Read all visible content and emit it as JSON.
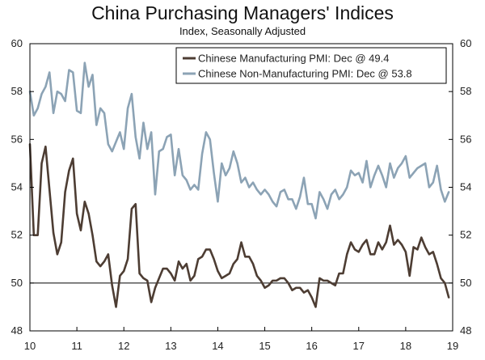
{
  "title": "China Purchasing Managers' Indices",
  "subtitle": "Index, Seasonally Adjusted",
  "chart_data": {
    "type": "line",
    "ylim": [
      48,
      60
    ],
    "yticks": [
      "48",
      "50",
      "52",
      "54",
      "56",
      "58",
      "60"
    ],
    "xlim": [
      2010,
      2019
    ],
    "xticks": [
      "10",
      "11",
      "12",
      "13",
      "14",
      "15",
      "16",
      "17",
      "18",
      "19"
    ],
    "reference_line": 50,
    "legend_position": "top-right",
    "colors": {
      "manufacturing": "#4d3d33",
      "non_manufacturing": "#8ca3b5"
    },
    "series": [
      {
        "name": "Chinese Manufacturing PMI: Dec @ 49.4",
        "key": "manufacturing",
        "start": [
          2010,
          1
        ],
        "values": [
          55.8,
          52.0,
          52.0,
          55.0,
          55.7,
          53.9,
          52.1,
          51.2,
          51.7,
          53.8,
          54.7,
          55.2,
          52.9,
          52.2,
          53.4,
          52.9,
          52.0,
          50.9,
          50.7,
          50.9,
          51.2,
          49.9,
          49.0,
          50.3,
          50.5,
          51.0,
          53.1,
          53.3,
          50.4,
          50.2,
          50.1,
          49.2,
          49.8,
          50.2,
          50.6,
          50.6,
          50.4,
          50.1,
          50.9,
          50.6,
          50.8,
          50.1,
          50.3,
          51.0,
          51.1,
          51.4,
          51.4,
          51.0,
          50.5,
          50.2,
          50.3,
          50.4,
          50.8,
          51.0,
          51.7,
          51.1,
          51.1,
          50.8,
          50.3,
          50.1,
          49.8,
          49.9,
          50.1,
          50.1,
          50.2,
          50.2,
          50.0,
          49.7,
          49.8,
          49.8,
          49.6,
          49.7,
          49.4,
          49.0,
          50.2,
          50.1,
          50.1,
          50.0,
          49.9,
          50.4,
          50.4,
          51.2,
          51.7,
          51.4,
          51.3,
          51.6,
          51.8,
          51.2,
          51.2,
          51.7,
          51.4,
          51.7,
          52.4,
          51.6,
          51.8,
          51.6,
          51.3,
          50.3,
          51.5,
          51.4,
          51.9,
          51.5,
          51.2,
          51.3,
          50.8,
          50.2,
          50.0,
          49.4
        ]
      },
      {
        "name": "Chinese Non-Manufacturing PMI: Dec @ 53.8",
        "key": "non_manufacturing",
        "start": [
          2010,
          1
        ],
        "values": [
          58.0,
          57.0,
          57.3,
          57.9,
          58.2,
          58.8,
          57.1,
          58.0,
          57.9,
          57.6,
          58.9,
          58.8,
          57.2,
          57.1,
          59.2,
          58.2,
          58.7,
          56.6,
          57.3,
          57.1,
          55.8,
          55.5,
          55.9,
          56.3,
          55.6,
          57.3,
          57.9,
          56.1,
          55.2,
          56.7,
          55.6,
          56.3,
          53.7,
          55.5,
          55.6,
          56.1,
          56.2,
          54.5,
          55.6,
          54.5,
          54.3,
          53.9,
          54.1,
          53.9,
          55.4,
          56.3,
          56.0,
          54.6,
          53.4,
          55.0,
          54.5,
          54.8,
          55.5,
          55.0,
          54.2,
          54.4,
          54.0,
          54.2,
          53.9,
          53.7,
          53.9,
          53.7,
          53.4,
          53.2,
          53.8,
          53.9,
          53.5,
          53.5,
          53.1,
          53.6,
          54.4,
          53.3,
          53.3,
          52.7,
          53.8,
          53.5,
          53.1,
          53.7,
          53.9,
          53.5,
          53.7,
          54.0,
          54.7,
          54.5,
          54.6,
          54.2,
          55.1,
          54.0,
          54.5,
          54.9,
          54.5,
          54.0,
          55.0,
          54.4,
          54.8,
          55.0,
          55.3,
          54.4,
          54.6,
          54.8,
          54.9,
          55.0,
          54.0,
          54.2,
          54.9,
          53.9,
          53.4,
          53.8
        ]
      }
    ]
  }
}
